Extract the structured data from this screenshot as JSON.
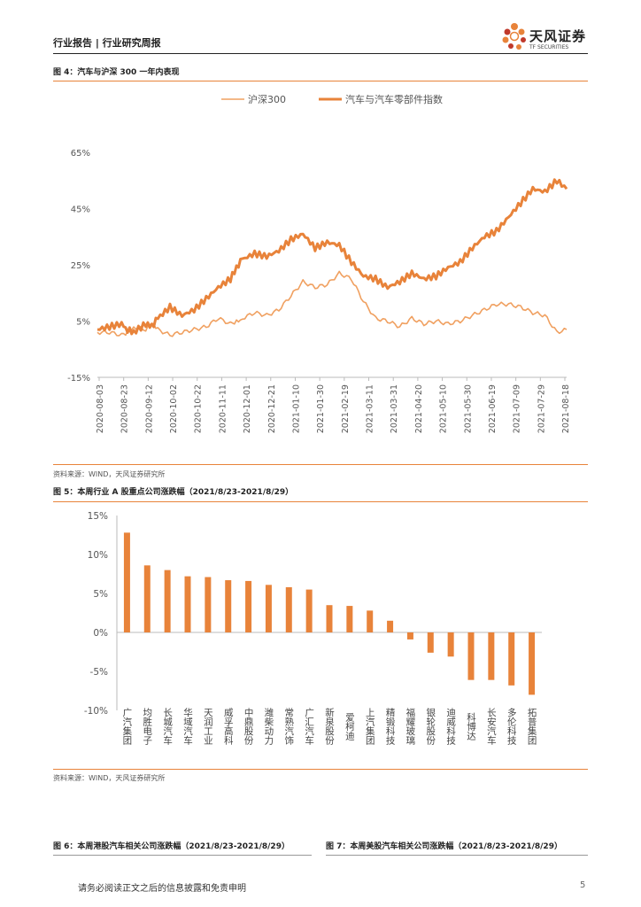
{
  "header": {
    "title": "行业报告 | 行业研究周报"
  },
  "brand": {
    "name": "天风证券",
    "sub": "TF SECURITIES",
    "color": "#e8833a"
  },
  "footer": {
    "disclaimer": "请务必阅读正文之后的信息披露和免责申明",
    "page": "5"
  },
  "fig4": {
    "title": "图 4：汽车与沪深 300 一年内表现",
    "source": "资料来源：WIND，天风证券研究所"
  },
  "fig5": {
    "title": "图 5：本周行业 A 股重点公司涨跌幅（2021/8/23-2021/8/29）",
    "source": "资料来源：WIND，天风证券研究所"
  },
  "fig6": {
    "title": "图 6：本周港股汽车相关公司涨跌幅（2021/8/23-2021/8/29）"
  },
  "fig7": {
    "title": "图 7：本周美股汽车相关公司涨跌幅（2021/8/23-2021/8/29）"
  },
  "chart_data": [
    {
      "type": "line",
      "title": "",
      "ylim": [
        -15,
        65
      ],
      "yticks": [
        "-15%",
        "5%",
        "25%",
        "45%",
        "65%"
      ],
      "ytick_values": [
        -15,
        5,
        25,
        45,
        65
      ],
      "xticks": [
        "2020-08-03",
        "2020-08-23",
        "2020-09-12",
        "2020-10-02",
        "2020-10-22",
        "2020-11-11",
        "2020-12-01",
        "2020-12-21",
        "2021-01-10",
        "2021-01-30",
        "2021-02-19",
        "2021-03-11",
        "2021-03-31",
        "2021-04-20",
        "2021-05-10",
        "2021-05-30",
        "2021-06-19",
        "2021-07-09",
        "2021-07-29",
        "2021-08-18"
      ],
      "series": [
        {
          "name": "沪深300",
          "color": "#f0a060",
          "x": [
            0,
            10,
            20,
            25,
            30,
            40,
            45,
            50,
            60,
            70,
            80,
            90,
            100,
            110,
            115,
            120,
            130,
            140,
            150,
            160,
            170,
            180,
            190,
            200,
            210,
            220,
            230,
            240,
            250,
            260,
            270,
            280,
            290,
            300,
            310,
            320,
            330,
            340,
            350,
            360,
            370,
            380,
            388
          ],
          "values": [
            1,
            1,
            0,
            1,
            3,
            2,
            4,
            2,
            0,
            1,
            2,
            3,
            6,
            4,
            5,
            6,
            8,
            7,
            9,
            14,
            19,
            17,
            18,
            22,
            20,
            12,
            6,
            5,
            3,
            6,
            4,
            5,
            4,
            5,
            7,
            9,
            11,
            11,
            10,
            8,
            7,
            1,
            2
          ]
        },
        {
          "name": "汽车与汽车零部件指数",
          "color": "#e8833a",
          "x": [
            0,
            10,
            20,
            25,
            30,
            40,
            45,
            50,
            60,
            70,
            80,
            90,
            100,
            110,
            115,
            120,
            130,
            140,
            150,
            160,
            170,
            180,
            190,
            200,
            210,
            220,
            230,
            240,
            250,
            260,
            270,
            280,
            290,
            300,
            310,
            320,
            330,
            340,
            350,
            360,
            370,
            380,
            388
          ],
          "values": [
            2,
            3,
            4,
            2,
            1,
            4,
            3,
            6,
            10,
            7,
            9,
            13,
            17,
            20,
            24,
            27,
            29,
            28,
            30,
            34,
            36,
            31,
            33,
            32,
            26,
            21,
            20,
            17,
            19,
            22,
            20,
            21,
            24,
            26,
            31,
            35,
            37,
            42,
            47,
            52,
            51,
            55,
            52
          ]
        }
      ]
    },
    {
      "type": "bar",
      "title": "",
      "ylim": [
        -10,
        15
      ],
      "yticks": [
        "-10%",
        "-5%",
        "0%",
        "5%",
        "10%",
        "15%"
      ],
      "ytick_values": [
        -10,
        -5,
        0,
        5,
        10,
        15
      ],
      "color": "#e8833a",
      "categories": [
        "广汽集团",
        "均胜电子",
        "长城汽车",
        "华域汽车",
        "天润工业",
        "威孚高科",
        "中鼎股份",
        "潍柴动力",
        "常熟汽饰",
        "广汇汽车",
        "新泉股份",
        "爱柯迪",
        "上汽集团",
        "精锻科技",
        "福耀玻璃",
        "银轮股份",
        "迪威科技",
        "科博达",
        "长安汽车",
        "多伦科技",
        "拓普集团"
      ],
      "values": [
        12.8,
        8.6,
        8.0,
        7.2,
        7.1,
        6.7,
        6.6,
        6.1,
        5.8,
        5.5,
        3.5,
        3.4,
        2.8,
        1.5,
        -0.9,
        -2.6,
        -3.1,
        -6.1,
        -6.1,
        -6.8,
        -8.0
      ]
    }
  ]
}
